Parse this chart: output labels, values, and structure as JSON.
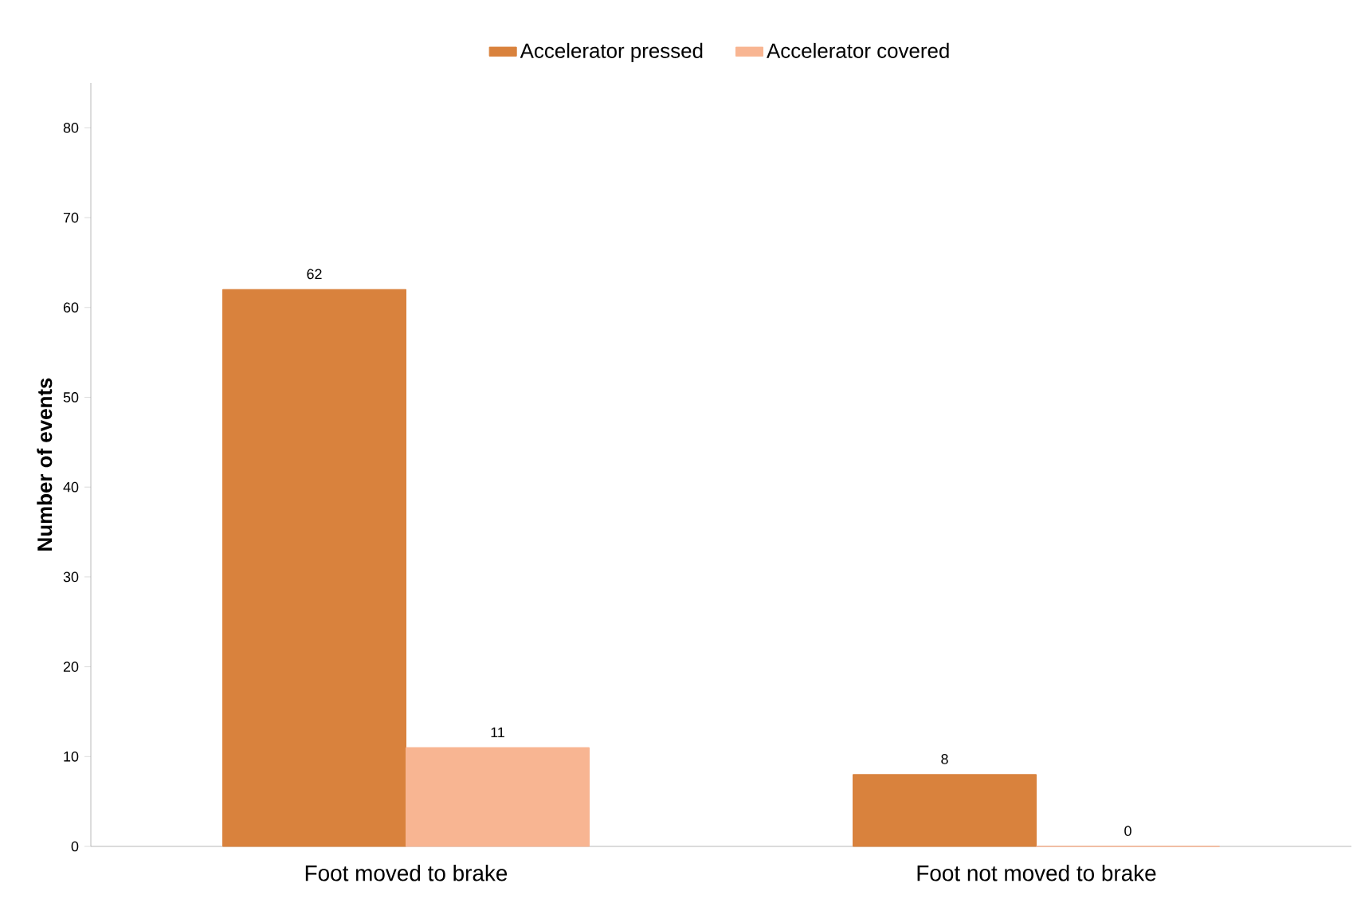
{
  "chart_data": {
    "type": "bar",
    "ylabel": "Number of events",
    "categories": [
      "Foot moved to brake",
      "Foot not moved to brake"
    ],
    "series": [
      {
        "name": "Accelerator pressed",
        "color": "#d9823d",
        "values": [
          62,
          8
        ]
      },
      {
        "name": "Accelerator covered",
        "color": "#f8b592",
        "values": [
          11,
          0
        ]
      }
    ],
    "ylim": [
      0,
      85
    ],
    "yticks": [
      0,
      10,
      20,
      30,
      40,
      50,
      60,
      70,
      80
    ],
    "data_labels": true,
    "legend": "top",
    "grid": false
  }
}
